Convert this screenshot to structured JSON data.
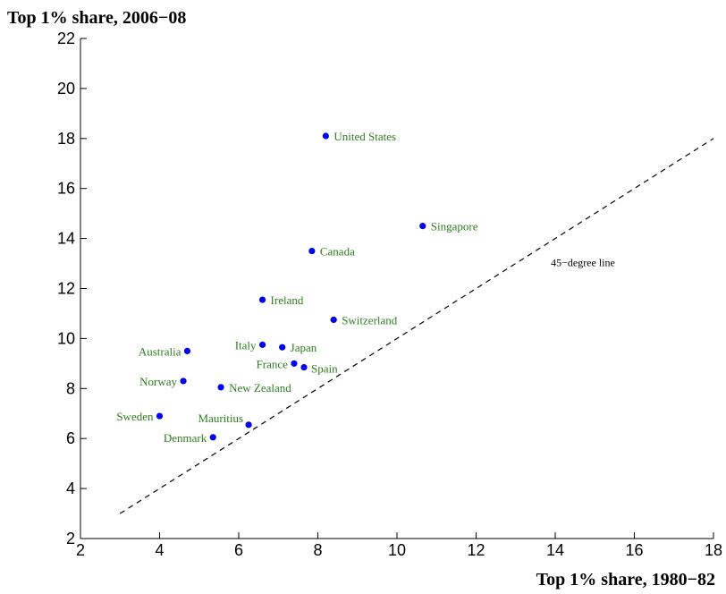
{
  "chart_data": {
    "type": "scatter",
    "title": "",
    "ylabel": "Top 1% share, 2006−08",
    "xlabel": "Top 1% share, 1980−82",
    "xlim": [
      2,
      18
    ],
    "ylim": [
      2,
      22
    ],
    "xticks": [
      2,
      4,
      6,
      8,
      10,
      12,
      14,
      16,
      18
    ],
    "yticks": [
      2,
      4,
      6,
      8,
      10,
      12,
      14,
      16,
      18,
      20,
      22
    ],
    "grid": false,
    "colors": {
      "point": "#0000ee",
      "label": "#2e7d1f",
      "reference": "#000000"
    },
    "points": [
      {
        "label": "United States",
        "x": 8.2,
        "y": 18.1,
        "side": "right"
      },
      {
        "label": "Singapore",
        "x": 10.65,
        "y": 14.5,
        "side": "right"
      },
      {
        "label": "Canada",
        "x": 7.85,
        "y": 13.5,
        "side": "right"
      },
      {
        "label": "Ireland",
        "x": 6.6,
        "y": 11.55,
        "side": "right"
      },
      {
        "label": "Switzerland",
        "x": 8.4,
        "y": 10.75,
        "side": "right"
      },
      {
        "label": "Italy",
        "x": 6.6,
        "y": 9.75,
        "side": "left"
      },
      {
        "label": "Japan",
        "x": 7.1,
        "y": 9.65,
        "side": "right"
      },
      {
        "label": "Australia",
        "x": 4.7,
        "y": 9.5,
        "side": "left"
      },
      {
        "label": "France",
        "x": 7.4,
        "y": 9.0,
        "side": "left"
      },
      {
        "label": "Spain",
        "x": 7.65,
        "y": 8.85,
        "side": "right-below"
      },
      {
        "label": "Norway",
        "x": 4.6,
        "y": 8.3,
        "side": "left"
      },
      {
        "label": "New Zealand",
        "x": 5.55,
        "y": 8.05,
        "side": "right"
      },
      {
        "label": "Sweden",
        "x": 4.0,
        "y": 6.9,
        "side": "left"
      },
      {
        "label": "Mauritius",
        "x": 6.25,
        "y": 6.55,
        "side": "left-above"
      },
      {
        "label": "Denmark",
        "x": 5.35,
        "y": 6.05,
        "side": "left"
      }
    ],
    "reference_line": {
      "label": "45−degree line",
      "x": [
        3,
        18
      ],
      "y": [
        3,
        18
      ],
      "style": "dashed",
      "label_at": {
        "x": 14.7,
        "y": 12.9
      }
    }
  }
}
